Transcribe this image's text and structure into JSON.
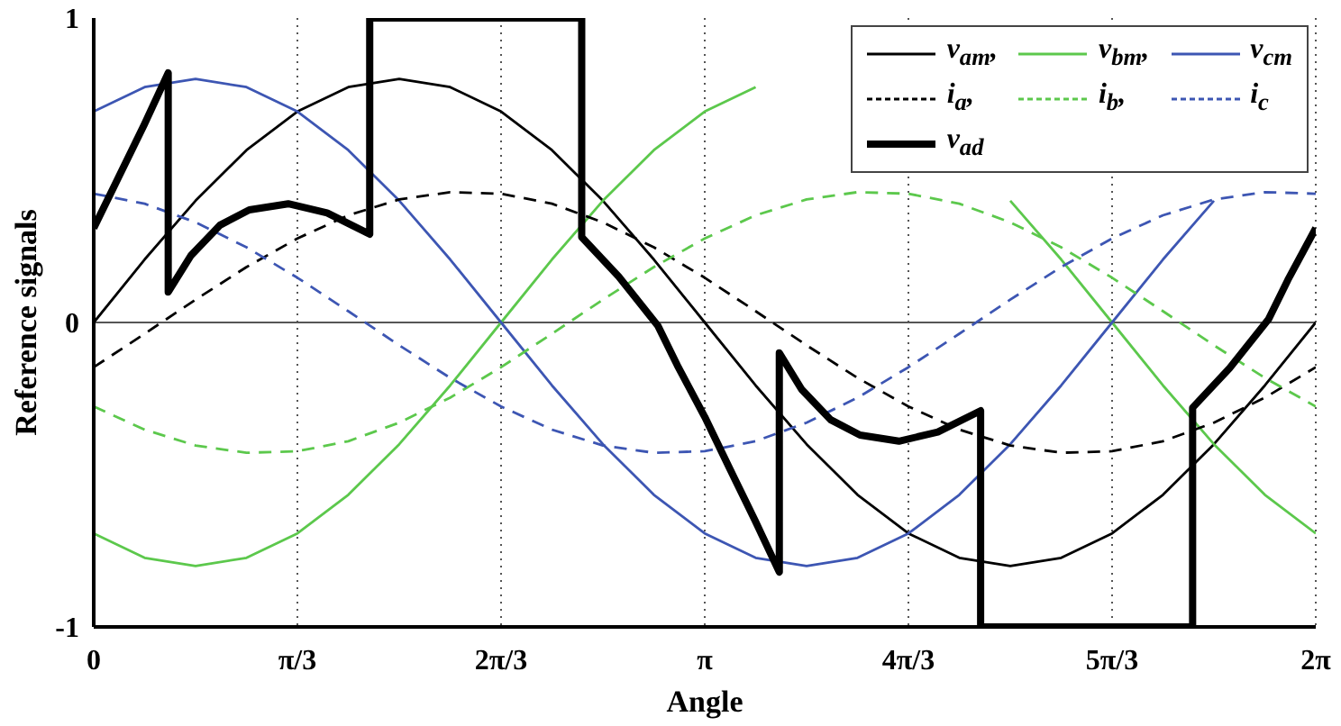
{
  "chart_data": {
    "type": "line",
    "xlabel": "Angle",
    "ylabel": "Reference signals",
    "x": [
      0,
      0.2618,
      0.5236,
      0.7854,
      1.0472,
      1.309,
      1.5708,
      1.8326,
      2.0944,
      2.3562,
      2.618,
      2.8798,
      3.1416,
      3.4034,
      3.6652,
      3.927,
      4.1888,
      4.4506,
      4.7124,
      4.9742,
      5.236,
      5.4978,
      5.7596,
      6.0214,
      6.2832
    ],
    "xlim": [
      0,
      6.2832
    ],
    "xticks": [
      0,
      {
        "value": 1.0472,
        "label": "π/3"
      },
      {
        "value": 2.0944,
        "label": "2π/3"
      },
      {
        "value": 3.1416,
        "label": "π"
      },
      {
        "value": 4.1888,
        "label": "4π/3"
      },
      {
        "value": 5.236,
        "label": "5π/3"
      },
      {
        "value": 6.2832,
        "label": "2π"
      }
    ],
    "ylim": [
      -1,
      1
    ],
    "yticks": [
      -1,
      0,
      1
    ],
    "grid": "x",
    "legend": "top right",
    "ref_lines": [
      {
        "axis": "y",
        "value": 0,
        "color": "#555555"
      }
    ],
    "series": [
      {
        "name": "v$_{am}$,",
        "color": "#000000",
        "line_style": "solid",
        "values": [
          0,
          0.207,
          0.4,
          0.566,
          0.693,
          0.773,
          0.8,
          0.773,
          0.693,
          0.566,
          0.4,
          0.207,
          0,
          -0.207,
          -0.4,
          -0.566,
          -0.693,
          -0.773,
          -0.8,
          -0.773,
          -0.693,
          -0.566,
          -0.4,
          -0.207,
          0
        ]
      },
      {
        "name": "v$_{bm}$,",
        "color": "#5cc84c",
        "line_style": "solid",
        "values": [
          -0.693,
          -0.773,
          -0.8,
          -0.773,
          -0.693,
          -0.566,
          -0.4,
          -0.207,
          0,
          0.207,
          0.4,
          0.566,
          0.693,
          0.773,
          null,
          null,
          null,
          null,
          0.4,
          0.207,
          0,
          -0.207,
          -0.4,
          -0.566,
          -0.693
        ]
      },
      {
        "name": "v$_{cm}$",
        "color": "#3d56b3",
        "line_style": "solid",
        "values": [
          0.693,
          0.773,
          0.8,
          0.773,
          0.693,
          0.566,
          0.4,
          0.207,
          0,
          -0.207,
          -0.4,
          -0.566,
          -0.693,
          -0.773,
          -0.8,
          -0.773,
          -0.693,
          -0.566,
          -0.4,
          -0.207,
          0,
          0.207,
          0.4,
          null,
          null
        ]
      },
      {
        "name": "i$_{a}$,",
        "color": "#000000",
        "line_style": "dashed",
        "values": [
          -0.147,
          -0.037,
          0.075,
          0.182,
          0.276,
          0.352,
          0.404,
          0.428,
          0.423,
          0.39,
          0.329,
          0.247,
          0.147,
          0.037,
          -0.075,
          -0.182,
          -0.276,
          -0.352,
          -0.404,
          -0.428,
          -0.423,
          -0.39,
          -0.329,
          -0.247,
          -0.147
        ]
      },
      {
        "name": "i$_{b}$,",
        "color": "#5cc84c",
        "line_style": "dashed",
        "values": [
          -0.276,
          -0.352,
          -0.404,
          -0.428,
          -0.423,
          -0.39,
          -0.329,
          -0.247,
          -0.147,
          -0.037,
          0.075,
          0.182,
          0.276,
          0.352,
          0.404,
          0.428,
          0.423,
          0.39,
          0.329,
          0.247,
          0.147,
          0.037,
          -0.075,
          -0.182,
          -0.276
        ]
      },
      {
        "name": "i$_{c}$",
        "color": "#3d56b3",
        "line_style": "dashed",
        "values": [
          0.423,
          0.39,
          0.329,
          0.247,
          0.147,
          0.037,
          -0.075,
          -0.182,
          -0.276,
          -0.352,
          -0.404,
          -0.428,
          -0.423,
          -0.39,
          -0.329,
          -0.247,
          -0.147,
          -0.037,
          0.075,
          0.182,
          0.276,
          0.352,
          0.404,
          0.428,
          0.423
        ]
      },
      {
        "name": "v$_{ad}$",
        "color": "#000000",
        "line_style": "solid",
        "x": [
          0,
          0.13,
          0.26,
          0.383,
          0.383,
          0.5,
          0.65,
          0.8,
          1.0,
          1.2,
          1.419,
          1.419,
          2.509,
          2.509,
          2.7,
          2.9,
          3.0,
          3.1416,
          3.27,
          3.4,
          3.525,
          3.525,
          3.64,
          3.79,
          3.94,
          4.14,
          4.34,
          4.56,
          4.56,
          5.65,
          5.65,
          5.84,
          6.04,
          6.14,
          6.2832
        ],
        "values": [
          0.31,
          0.48,
          0.65,
          0.82,
          0.1,
          0.22,
          0.32,
          0.37,
          0.39,
          0.36,
          0.29,
          1,
          1,
          0.28,
          0.15,
          -0.01,
          -0.14,
          -0.31,
          -0.48,
          -0.65,
          -0.82,
          -0.1,
          -0.22,
          -0.32,
          -0.37,
          -0.39,
          -0.36,
          -0.29,
          -1,
          -1,
          -0.28,
          -0.15,
          0.01,
          0.14,
          0.31
        ]
      }
    ]
  }
}
